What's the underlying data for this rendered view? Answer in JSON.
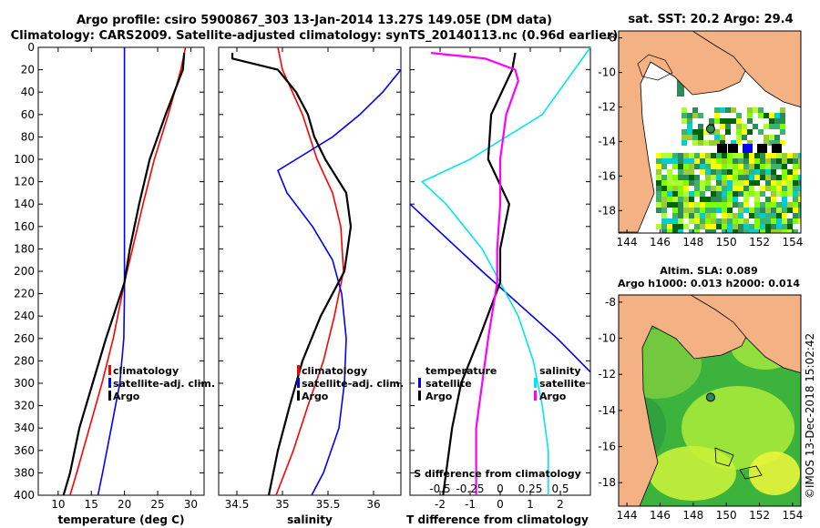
{
  "header": {
    "title_line1": "Argo profile: csiro 5900867_303 13-Jan-2014 13.27S 149.05E (DM data)",
    "title_line2": "Climatology: CARS2009. Satellite-adjusted climatology: synTS_20140113.nc (0.96d earlier)"
  },
  "depth_ticks": [
    "0",
    "20",
    "40",
    "60",
    "80",
    "100",
    "120",
    "140",
    "160",
    "180",
    "200",
    "220",
    "240",
    "260",
    "280",
    "300",
    "320",
    "340",
    "360",
    "380",
    "400"
  ],
  "legend_labels": {
    "climatology": "climatology",
    "satellite_adj": "satellite-adj. clim.",
    "argo": "Argo",
    "temperature": "temperature",
    "salinity": "salinity",
    "satellite": "satellite"
  },
  "colors": {
    "clim": "#ff0000",
    "sat": "#0000ff",
    "argo": "#000000",
    "t_sat": "#00e5ee",
    "s_diff": "#ff00ff",
    "land": "#f4b183",
    "sst_a": "#2e8b57",
    "sst_b": "#7fff00",
    "sla_bg": "#3cb33c"
  },
  "chart_data": [
    {
      "type": "line",
      "name": "temperature",
      "xlabel": "temperature (deg C)",
      "xlim": [
        7,
        32
      ],
      "ylim": [
        0,
        400
      ],
      "xticks": [
        10,
        15,
        20,
        25,
        30
      ],
      "series": [
        {
          "name": "climatology",
          "color": "#ff0000",
          "depth": [
            0,
            20,
            60,
            100,
            140,
            180,
            210,
            260,
            300,
            340,
            380,
            400
          ],
          "values": [
            29.2,
            28.5,
            26.6,
            24.5,
            22.8,
            21.2,
            20.0,
            18.3,
            16.6,
            14.7,
            12.8,
            11.8
          ]
        },
        {
          "name": "satellite-adj. clim.",
          "color": "#0000ff",
          "depth": [
            0,
            20,
            100,
            200,
            220,
            260,
            300,
            340,
            380,
            400
          ],
          "values": [
            20.0,
            20.0,
            20.0,
            20.0,
            20.0,
            19.9,
            19.3,
            18.0,
            16.7,
            16.0
          ]
        },
        {
          "name": "Argo",
          "color": "#000000",
          "depth": [
            5,
            20,
            60,
            100,
            140,
            180,
            210,
            260,
            300,
            340,
            380,
            400
          ],
          "values": [
            29.0,
            28.8,
            26.2,
            23.8,
            22.2,
            20.8,
            20.0,
            17.2,
            15.2,
            13.2,
            11.8,
            10.8
          ]
        }
      ]
    },
    {
      "type": "line",
      "name": "salinity",
      "xlabel": "salinity",
      "xlim": [
        34.3,
        36.3
      ],
      "ylim": [
        0,
        400
      ],
      "xticks": [
        34.5,
        35,
        35.5,
        36
      ],
      "series": [
        {
          "name": "climatology",
          "color": "#ff0000",
          "depth": [
            0,
            20,
            60,
            100,
            130,
            160,
            200,
            240,
            280,
            320,
            360,
            400
          ],
          "values": [
            34.95,
            35.0,
            35.22,
            35.38,
            35.55,
            35.64,
            35.67,
            35.57,
            35.45,
            35.28,
            35.12,
            34.93
          ]
        },
        {
          "name": "satellite-adj. clim.",
          "color": "#0000ff",
          "depth": [
            0,
            20,
            40,
            60,
            80,
            100,
            110,
            130,
            160,
            190,
            220,
            260,
            300,
            340,
            380,
            400
          ],
          "values": [
            36.4,
            36.3,
            36.1,
            35.85,
            35.55,
            35.15,
            34.95,
            35.05,
            35.33,
            35.55,
            35.65,
            35.7,
            35.68,
            35.62,
            35.45,
            35.32
          ]
        },
        {
          "name": "Argo",
          "color": "#000000",
          "depth": [
            5,
            10,
            20,
            40,
            60,
            80,
            100,
            130,
            160,
            200,
            240,
            280,
            320,
            360,
            400
          ],
          "values": [
            34.45,
            34.45,
            34.95,
            35.15,
            35.28,
            35.35,
            35.47,
            35.7,
            35.75,
            35.68,
            35.42,
            35.22,
            35.08,
            34.95,
            34.85
          ]
        }
      ]
    },
    {
      "type": "line",
      "name": "difference",
      "xlabel": "T difference from climatology",
      "x2label": "S difference from climatology",
      "xlim": [
        -3,
        3
      ],
      "ylim": [
        0,
        400
      ],
      "xticks": [
        -2,
        -1,
        0,
        1,
        2
      ],
      "x2ticks": [
        "-0.5",
        "-0.25",
        "0",
        "0.25",
        "0.5"
      ],
      "series": [
        {
          "name": "T satellite",
          "color": "#0000ff",
          "depth": [
            140,
            200,
            260,
            290
          ],
          "values": [
            -3.0,
            -0.6,
            1.9,
            3.0
          ]
        },
        {
          "name": "S satellite",
          "color": "#00e5ee",
          "depth": [
            0,
            60,
            100,
            120,
            140,
            180,
            210,
            240,
            280,
            320,
            360,
            400
          ],
          "values": [
            3.0,
            1.4,
            -1.0,
            -2.6,
            -1.8,
            -0.6,
            0.0,
            0.6,
            1.1,
            1.4,
            1.6,
            1.6
          ]
        },
        {
          "name": "T Argo",
          "color": "#000000",
          "depth": [
            5,
            20,
            60,
            100,
            140,
            180,
            210,
            260,
            300,
            340,
            380,
            400
          ],
          "values": [
            0.5,
            0.4,
            -0.3,
            -0.4,
            0.3,
            0.0,
            0.0,
            -0.7,
            -1.3,
            -1.6,
            -1.8,
            -1.9
          ]
        },
        {
          "name": "S Argo",
          "color": "#ff00ff",
          "depth": [
            5,
            10,
            20,
            30,
            60,
            100,
            140,
            180,
            210,
            260,
            300,
            340,
            380,
            400
          ],
          "values": [
            -2.3,
            -0.5,
            0.5,
            0.6,
            0.2,
            0.0,
            0.0,
            -0.1,
            -0.1,
            -0.4,
            -0.6,
            -0.8,
            -0.8,
            -0.8
          ]
        }
      ]
    },
    {
      "type": "heatmap",
      "name": "sst_map",
      "title": "sat. SST: 20.2 Argo: 29.4",
      "xlim": [
        143.5,
        154.5
      ],
      "ylim": [
        -19.3,
        -7.6
      ],
      "xticks": [
        144,
        146,
        148,
        150,
        152,
        154
      ],
      "yticks": [
        -8,
        -10,
        -12,
        -14,
        -16,
        -18
      ],
      "argo_position": {
        "lon": 149.05,
        "lat": -13.27
      }
    },
    {
      "type": "heatmap",
      "name": "sla_map",
      "title": "Altim. SLA: 0.089",
      "subtitle": "Argo h1000: 0.013 h2000: 0.014",
      "xlim": [
        143.5,
        154.5
      ],
      "ylim": [
        -19.3,
        -7.6
      ],
      "xticks": [
        144,
        146,
        148,
        150,
        152,
        154
      ],
      "yticks": [
        -8,
        -10,
        -12,
        -14,
        -16,
        -18
      ],
      "argo_position": {
        "lon": 149.05,
        "lat": -13.27
      }
    }
  ],
  "footer": {
    "credit": "©IMOS 13-Dec-2018 15:02:42"
  }
}
